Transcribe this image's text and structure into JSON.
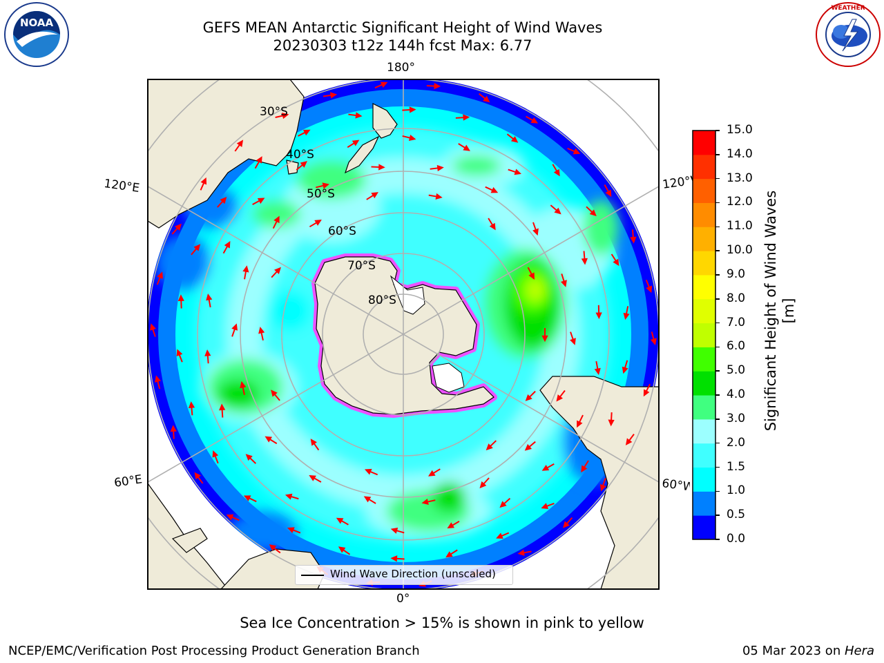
{
  "header": {
    "title_line1": "GEFS MEAN Antarctic Significant Height of Wind Waves",
    "title_line2": "20230303 t12z 144h fcst   Max: 6.77",
    "left_logo": "NOAA",
    "left_logo_ring_text": "NATIONAL OCEANIC AND ATMOSPHERIC ADMINISTRATION · U.S. DEPARTMENT OF COMMERCE",
    "right_logo_ring_text": "NATIONAL WEATHER SERVICE"
  },
  "map": {
    "projection": "south-polar-stereographic",
    "longitude_labels": {
      "top": "180°",
      "bottom": "0°",
      "left_upper": "120°E",
      "left_lower": "60°E",
      "right_upper": "120°W",
      "right_lower": "60°W"
    },
    "latitude_labels": [
      "30°S",
      "40°S",
      "50°S",
      "60°S",
      "70°S",
      "80°S"
    ],
    "legend_label": "Wind Wave Direction (unscaled)"
  },
  "colorbar": {
    "label": "Significant Height of Wind Waves [m]",
    "ticks": [
      "0.0",
      "0.5",
      "1.0",
      "1.5",
      "2.0",
      "3.0",
      "4.0",
      "5.0",
      "6.0",
      "7.0",
      "8.0",
      "9.0",
      "10.0",
      "11.0",
      "12.0",
      "13.0",
      "14.0",
      "15.0"
    ],
    "colors": [
      "#0000ff",
      "#0080ff",
      "#00ffff",
      "#40ffff",
      "#9cffff",
      "#40ff80",
      "#00e000",
      "#40ff00",
      "#c0ff00",
      "#e0ff00",
      "#ffff00",
      "#ffd700",
      "#ffb000",
      "#ff8c00",
      "#ff6000",
      "#ff3000",
      "#ff0000"
    ]
  },
  "colors": {
    "land": "#efebd9",
    "coast": "#000000",
    "grid": "#b0b0b0",
    "arrows": "#ff0000",
    "sea_ice": "#ff40ff"
  },
  "caption": "Sea Ice Concentration > 15% is shown in pink to yellow",
  "footer": {
    "left": "NCEP/EMC/Verification Post Processing Product Generation Branch",
    "right_date": "05 Mar 2023 on ",
    "right_host": "Hera"
  }
}
